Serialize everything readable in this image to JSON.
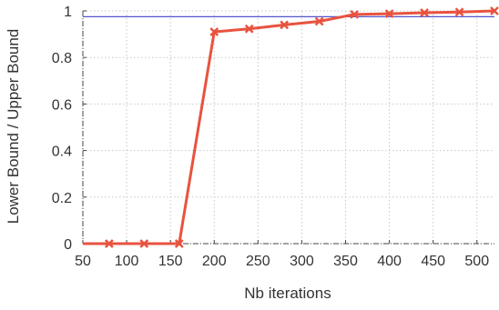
{
  "chart_data": {
    "type": "line",
    "xlabel": "Nb iterations",
    "ylabel": "Lower Bound / Upper Bound",
    "xlim": [
      50,
      520
    ],
    "ylim": [
      0,
      1
    ],
    "x_ticks": [
      50,
      100,
      150,
      200,
      250,
      300,
      350,
      400,
      450,
      500
    ],
    "x_tick_labels": [
      "50",
      "100",
      "150",
      "200",
      "250",
      "300",
      "350",
      "400",
      "450",
      "500"
    ],
    "y_ticks": [
      0,
      0.2,
      0.4,
      0.6,
      0.8,
      1
    ],
    "y_tick_labels": [
      "0",
      "0.2",
      "0.4",
      "0.6",
      "0.8",
      "1"
    ],
    "grid": true,
    "series": [
      {
        "color": "#e8533f",
        "marker": "x",
        "x": [
          50,
          80,
          120,
          160,
          200,
          240,
          280,
          320,
          360,
          400,
          440,
          480,
          520
        ],
        "y": [
          0,
          0,
          0,
          0,
          0.91,
          0.923,
          0.94,
          0.955,
          0.985,
          0.988,
          0.992,
          0.995,
          1.0
        ]
      }
    ],
    "reference_line": {
      "color": "#5555cc",
      "y": 0.975
    }
  }
}
